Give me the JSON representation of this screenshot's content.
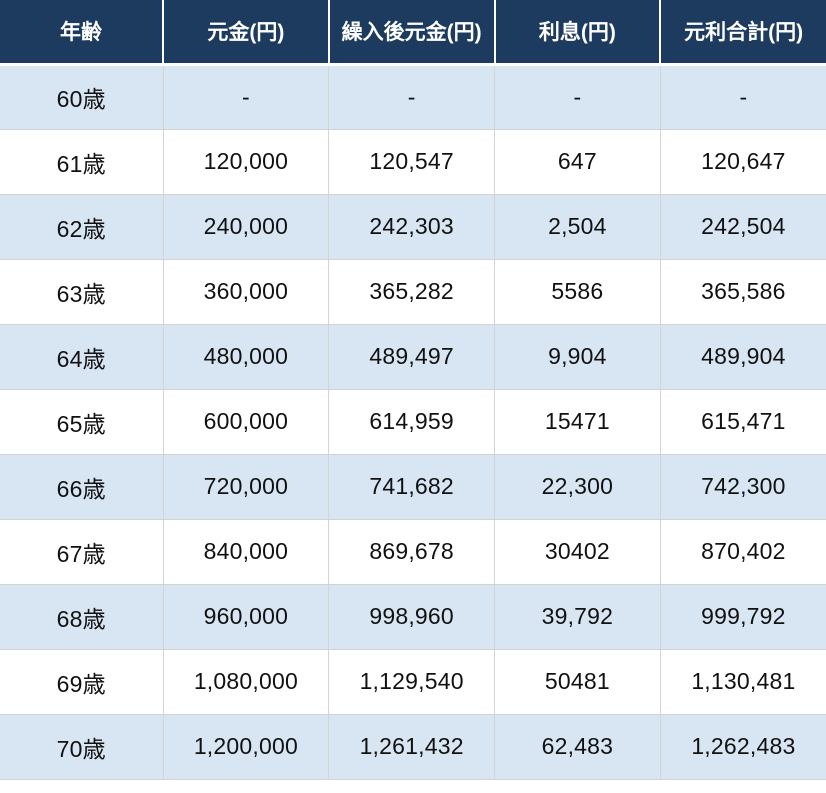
{
  "table": {
    "title": "repayment-schedule-by-age",
    "columns": [
      {
        "key": "age",
        "label": "年齢"
      },
      {
        "key": "principal",
        "label": "元金(円)"
      },
      {
        "key": "principal_after_transfer",
        "label": "繰入後元金(円)"
      },
      {
        "key": "interest",
        "label": "利息(円)"
      },
      {
        "key": "principal_and_interest_total",
        "label": "元利合計(円)"
      }
    ],
    "rows": [
      {
        "age": "60歳",
        "principal": "-",
        "principal_after_transfer": "-",
        "interest": "-",
        "principal_and_interest_total": "-"
      },
      {
        "age": "61歳",
        "principal": "120,000",
        "principal_after_transfer": "120,547",
        "interest": "647",
        "principal_and_interest_total": "120,647"
      },
      {
        "age": "62歳",
        "principal": "240,000",
        "principal_after_transfer": "242,303",
        "interest": "2,504",
        "principal_and_interest_total": "242,504"
      },
      {
        "age": "63歳",
        "principal": "360,000",
        "principal_after_transfer": "365,282",
        "interest": "5586",
        "principal_and_interest_total": "365,586"
      },
      {
        "age": "64歳",
        "principal": "480,000",
        "principal_after_transfer": "489,497",
        "interest": "9,904",
        "principal_and_interest_total": "489,904"
      },
      {
        "age": "65歳",
        "principal": "600,000",
        "principal_after_transfer": "614,959",
        "interest": "15471",
        "principal_and_interest_total": "615,471"
      },
      {
        "age": "66歳",
        "principal": "720,000",
        "principal_after_transfer": "741,682",
        "interest": "22,300",
        "principal_and_interest_total": "742,300"
      },
      {
        "age": "67歳",
        "principal": "840,000",
        "principal_after_transfer": "869,678",
        "interest": "30402",
        "principal_and_interest_total": "870,402"
      },
      {
        "age": "68歳",
        "principal": "960,000",
        "principal_after_transfer": "998,960",
        "interest": "39,792",
        "principal_and_interest_total": "999,792"
      },
      {
        "age": "69歳",
        "principal": "1,080,000",
        "principal_after_transfer": "1,129,540",
        "interest": "50481",
        "principal_and_interest_total": "1,130,481"
      },
      {
        "age": "70歳",
        "principal": "1,200,000",
        "principal_after_transfer": "1,261,432",
        "interest": "62,483",
        "principal_and_interest_total": "1,262,483"
      }
    ]
  },
  "colors": {
    "header_bg": "#1d3b5e",
    "header_text": "#ffffff",
    "row_alt_bg": "#d8e6f3",
    "row_bg": "#ffffff",
    "border": "#d4d4d4",
    "cell_text": "#111111"
  }
}
